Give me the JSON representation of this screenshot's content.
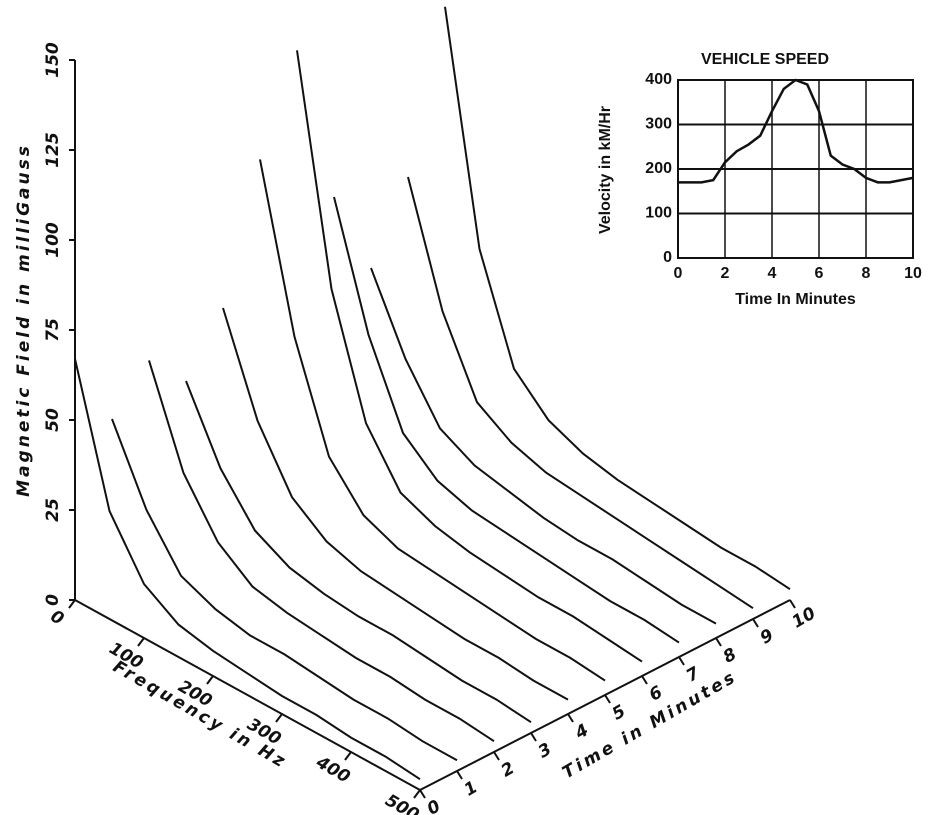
{
  "chart_data": [
    {
      "type": "surface",
      "x_label": "Frequency in Hz",
      "y_label": "Time in Minutes",
      "z_label": "Magnetic Field in milliGauss",
      "x": [
        0,
        50,
        100,
        150,
        200,
        250,
        300,
        350,
        400,
        450,
        500
      ],
      "y": [
        0,
        1,
        2,
        3,
        4,
        5,
        6,
        7,
        8,
        9,
        10
      ],
      "z": [
        [
          67,
          30,
          15,
          9,
          7,
          6,
          5,
          5,
          4,
          4,
          3
        ],
        [
          45,
          25,
          12,
          8,
          6,
          6,
          5,
          4,
          4,
          3,
          3
        ],
        [
          56,
          30,
          16,
          9,
          7,
          6,
          5,
          5,
          4,
          4,
          3
        ],
        [
          45,
          26,
          14,
          9,
          7,
          6,
          6,
          5,
          4,
          4,
          3
        ],
        [
          60,
          34,
          18,
          11,
          8,
          7,
          6,
          5,
          5,
          4,
          4
        ],
        [
          96,
          52,
          24,
          13,
          9,
          8,
          7,
          6,
          5,
          5,
          4
        ],
        [
          121,
          60,
          28,
          14,
          10,
          8,
          7,
          6,
          6,
          5,
          4
        ],
        [
          75,
          42,
          20,
          12,
          9,
          8,
          7,
          6,
          5,
          5,
          4
        ],
        [
          50,
          30,
          16,
          11,
          9,
          7,
          6,
          6,
          5,
          4,
          4
        ],
        [
          70,
          38,
          18,
          12,
          9,
          8,
          7,
          6,
          5,
          4,
          3
        ],
        [
          112,
          50,
          22,
          13,
          9,
          7,
          6,
          5,
          4,
          4,
          3
        ]
      ],
      "xlim": [
        0,
        500
      ],
      "xticks": [
        0,
        100,
        200,
        300,
        400,
        500
      ],
      "ylim": [
        0,
        10
      ],
      "yticks": [
        0,
        1,
        2,
        3,
        4,
        5,
        6,
        7,
        8,
        9,
        10
      ],
      "zlim": [
        0,
        150
      ],
      "zticks": [
        0,
        25,
        50,
        75,
        100,
        125,
        150
      ],
      "color": "#111111"
    },
    {
      "type": "line",
      "title": "VEHICLE SPEED",
      "x_label": "Time In Minutes",
      "y_label": "Velocity in kM/Hr",
      "x": [
        0,
        0.5,
        1,
        1.5,
        2,
        2.5,
        3,
        3.5,
        4,
        4.5,
        5,
        5.5,
        6,
        6.5,
        7,
        7.5,
        8,
        8.5,
        9,
        9.5,
        10
      ],
      "values": [
        170,
        170,
        170,
        175,
        215,
        240,
        255,
        275,
        330,
        380,
        400,
        390,
        330,
        230,
        210,
        200,
        180,
        170,
        170,
        175,
        180
      ],
      "xlim": [
        0,
        10
      ],
      "xticks": [
        0,
        2,
        4,
        6,
        8,
        10
      ],
      "ylim": [
        0,
        400
      ],
      "yticks": [
        0,
        100,
        200,
        300,
        400
      ],
      "grid": true,
      "color": "#111111"
    }
  ]
}
